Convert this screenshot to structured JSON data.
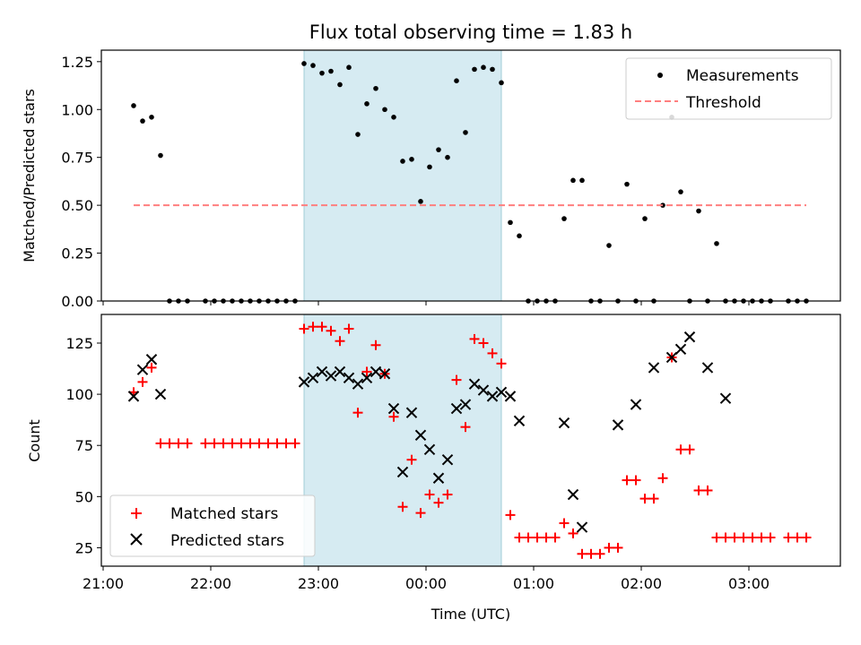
{
  "title": "Flux total observing time = 1.83 h",
  "chart_data": [
    {
      "type": "scatter",
      "ylabel": "Matched/Predicted stars",
      "xlabel": "",
      "ylim": [
        0.0,
        1.31
      ],
      "xlim": [
        "20:59",
        "03:51"
      ],
      "yticks": [
        "0.00",
        "0.25",
        "0.50",
        "0.75",
        "1.00",
        "1.25"
      ],
      "ytick_values": [
        0.0,
        0.25,
        0.5,
        0.75,
        1.0,
        1.25
      ],
      "grid": false,
      "legend": {
        "placement": "top-right",
        "entries": [
          "Measurements",
          "Threshold"
        ]
      },
      "shaded_interval": {
        "from": "22:52",
        "to": "00:42",
        "color": "#add8e6"
      },
      "series": [
        {
          "name": "Measurements",
          "marker": "dot",
          "color": "#000000",
          "x": [
            "21:17",
            "21:22",
            "21:27",
            "21:32",
            "21:37",
            "21:42",
            "21:47",
            "21:57",
            "22:02",
            "22:07",
            "22:12",
            "22:17",
            "22:22",
            "22:27",
            "22:32",
            "22:37",
            "22:42",
            "22:47",
            "22:52",
            "22:57",
            "23:02",
            "23:07",
            "23:12",
            "23:17",
            "23:22",
            "23:27",
            "23:32",
            "23:37",
            "23:42",
            "23:47",
            "23:52",
            "23:57",
            "00:02",
            "00:07",
            "00:12",
            "00:17",
            "00:22",
            "00:27",
            "00:32",
            "00:37",
            "00:42",
            "00:47",
            "00:52",
            "00:57",
            "01:02",
            "01:07",
            "01:12",
            "01:17",
            "01:22",
            "01:27",
            "01:32",
            "01:37",
            "01:42",
            "01:47",
            "01:52",
            "01:57",
            "02:02",
            "02:07",
            "02:12",
            "02:17",
            "02:22",
            "02:27",
            "02:32",
            "02:37",
            "02:42",
            "02:47",
            "02:52",
            "02:57",
            "03:02",
            "03:07",
            "03:12",
            "03:22",
            "03:27",
            "03:32"
          ],
          "values": [
            1.02,
            0.94,
            0.96,
            0.76,
            0.0,
            0.0,
            0.0,
            0.0,
            0.0,
            0.0,
            0.0,
            0.0,
            0.0,
            0.0,
            0.0,
            0.0,
            0.0,
            0.0,
            1.24,
            1.23,
            1.19,
            1.2,
            1.13,
            1.22,
            0.87,
            1.03,
            1.11,
            1.0,
            0.96,
            0.73,
            0.74,
            0.52,
            0.7,
            0.79,
            0.75,
            1.15,
            0.88,
            1.21,
            1.22,
            1.21,
            1.14,
            0.41,
            0.34,
            0.0,
            0.0,
            0.0,
            0.0,
            0.43,
            0.63,
            0.63,
            0.0,
            0.0,
            0.29,
            0.0,
            0.61,
            0.0,
            0.43,
            0.0,
            0.5,
            0.96,
            0.57,
            0.0,
            0.47,
            0.0,
            0.3,
            0.0,
            0.0,
            0.0,
            0.0,
            0.0,
            0.0,
            0.0,
            0.0,
            0.0
          ]
        },
        {
          "name": "Threshold",
          "style": "dashed",
          "color": "#ff7f7f",
          "x": [
            "21:17",
            "03:32"
          ],
          "values": [
            0.5,
            0.5
          ]
        }
      ]
    },
    {
      "type": "scatter",
      "ylabel": "Count",
      "xlabel": "Time (UTC)",
      "ylim": [
        16,
        139
      ],
      "xlim": [
        "20:59",
        "03:51"
      ],
      "yticks": [
        "25",
        "50",
        "75",
        "100",
        "125"
      ],
      "ytick_values": [
        25,
        50,
        75,
        100,
        125
      ],
      "xticks": [
        "21:00",
        "22:00",
        "23:00",
        "00:00",
        "01:00",
        "02:00",
        "03:00"
      ],
      "grid": false,
      "legend": {
        "placement": "bottom-left",
        "entries": [
          "Matched stars",
          "Predicted stars"
        ]
      },
      "shaded_interval": {
        "from": "22:52",
        "to": "00:42",
        "color": "#add8e6"
      },
      "series": [
        {
          "name": "Matched stars",
          "marker": "plus",
          "color": "#ff0000",
          "x": [
            "21:17",
            "21:22",
            "21:27",
            "21:32",
            "21:37",
            "21:42",
            "21:47",
            "21:57",
            "22:02",
            "22:07",
            "22:12",
            "22:17",
            "22:22",
            "22:27",
            "22:32",
            "22:37",
            "22:42",
            "22:47",
            "22:52",
            "22:57",
            "23:02",
            "23:07",
            "23:12",
            "23:17",
            "23:22",
            "23:27",
            "23:32",
            "23:37",
            "23:42",
            "23:47",
            "23:52",
            "23:57",
            "00:02",
            "00:07",
            "00:12",
            "00:17",
            "00:22",
            "00:27",
            "00:32",
            "00:37",
            "00:42",
            "00:47",
            "00:52",
            "00:57",
            "01:02",
            "01:07",
            "01:12",
            "01:17",
            "01:22",
            "01:27",
            "01:32",
            "01:37",
            "01:42",
            "01:47",
            "01:52",
            "01:57",
            "02:02",
            "02:07",
            "02:12",
            "02:17",
            "02:22",
            "02:27",
            "02:32",
            "02:37",
            "02:42",
            "02:47",
            "02:52",
            "02:57",
            "03:02",
            "03:07",
            "03:12",
            "03:22",
            "03:27",
            "03:32"
          ],
          "values": [
            101,
            106,
            113,
            76,
            76,
            76,
            76,
            76,
            76,
            76,
            76,
            76,
            76,
            76,
            76,
            76,
            76,
            76,
            132,
            133,
            133,
            131,
            126,
            132,
            91,
            111,
            124,
            110,
            89,
            45,
            68,
            42,
            51,
            47,
            51,
            107,
            84,
            127,
            125,
            120,
            115,
            41,
            30,
            30,
            30,
            30,
            30,
            37,
            32,
            22,
            22,
            22,
            25,
            25,
            58,
            58,
            49,
            49,
            59,
            118,
            73,
            73,
            53,
            53,
            30,
            30,
            30,
            30,
            30,
            30,
            30,
            30,
            30,
            30
          ]
        },
        {
          "name": "Predicted stars",
          "marker": "x",
          "color": "#000000",
          "x": [
            "21:17",
            "21:22",
            "21:27",
            "21:32",
            "22:52",
            "22:57",
            "23:02",
            "23:07",
            "23:12",
            "23:17",
            "23:22",
            "23:27",
            "23:32",
            "23:37",
            "23:42",
            "23:47",
            "23:52",
            "23:57",
            "00:02",
            "00:07",
            "00:12",
            "00:17",
            "00:22",
            "00:27",
            "00:32",
            "00:37",
            "00:42",
            "00:47",
            "00:52",
            "01:17",
            "01:22",
            "01:27",
            "01:47",
            "01:57",
            "02:07",
            "02:17",
            "02:22",
            "02:27",
            "02:37",
            "02:47"
          ],
          "values": [
            99,
            112,
            117,
            100,
            106,
            108,
            111,
            109,
            111,
            108,
            105,
            108,
            111,
            110,
            93,
            62,
            91,
            80,
            73,
            59,
            68,
            93,
            95,
            105,
            102,
            99,
            101,
            99,
            87,
            86,
            51,
            35,
            85,
            95,
            113,
            118,
            122,
            128,
            113,
            98
          ]
        }
      ]
    }
  ]
}
